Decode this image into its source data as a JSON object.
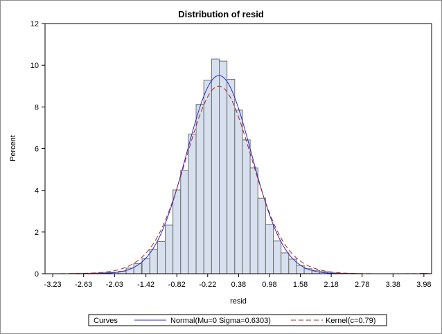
{
  "chart_data": {
    "type": "bar",
    "title": "Distribution of resid",
    "xlabel": "resid",
    "ylabel": "Percent",
    "ylim": [
      0,
      12
    ],
    "yticks": [
      0,
      2,
      4,
      6,
      8,
      10,
      12
    ],
    "xlim": [
      -3.38,
      4.13
    ],
    "xtick_values": [
      -3.23,
      -2.63,
      -2.03,
      -1.42,
      -0.82,
      -0.22,
      0.38,
      0.98,
      1.58,
      2.18,
      2.78,
      3.38,
      3.98
    ],
    "xtick_labels": [
      "-3.23",
      "-2.63",
      "-2.03",
      "-1.42",
      "-0.82",
      "-0.22",
      "0.38",
      "0.98",
      "1.58",
      "2.18",
      "2.78",
      "3.38",
      "3.98"
    ],
    "bin_width": 0.1502,
    "bin_centers": [
      -3.23,
      -3.08,
      -2.93,
      -2.78,
      -2.63,
      -2.48,
      -2.33,
      -2.18,
      -2.03,
      -1.88,
      -1.73,
      -1.58,
      -1.42,
      -1.27,
      -1.12,
      -0.97,
      -0.82,
      -0.67,
      -0.52,
      -0.37,
      -0.22,
      -0.07,
      0.08,
      0.23,
      0.38,
      0.53,
      0.68,
      0.83,
      0.98,
      1.13,
      1.28,
      1.43,
      1.58,
      1.73,
      1.88,
      2.03,
      2.18,
      2.33,
      2.48,
      2.63,
      2.78,
      2.93,
      3.08,
      3.23,
      3.38,
      3.53,
      3.68,
      3.83,
      3.98
    ],
    "values": [
      0.0,
      0.0,
      0.0,
      0.01,
      0.01,
      0.02,
      0.03,
      0.06,
      0.07,
      0.12,
      0.27,
      0.48,
      0.72,
      1.15,
      1.55,
      2.33,
      4.02,
      4.95,
      6.7,
      8.12,
      9.28,
      10.3,
      10.2,
      9.32,
      7.85,
      6.42,
      5.08,
      3.62,
      2.37,
      1.57,
      1.0,
      0.7,
      0.4,
      0.24,
      0.16,
      0.1,
      0.04,
      0.02,
      0.01,
      0.01,
      0.0,
      0.0,
      0.0,
      0.0,
      0.0,
      0.0,
      0.0,
      0.0,
      0.02
    ],
    "curves": [
      {
        "name": "Normal(Mu=0 Sigma=0.6303)",
        "kind": "normal",
        "mu": 0,
        "sigma": 0.6303,
        "color": "#2a2ad0"
      },
      {
        "name": "Kernel(c=0.79)",
        "kind": "kernel",
        "bandwidth": 0.3,
        "color": "#a8231f"
      }
    ],
    "bar_fill": "#d6e0ee",
    "bar_stroke": "#6b6b6b",
    "grid": false,
    "legend_position": "bottom",
    "legend_title": "Curves"
  }
}
